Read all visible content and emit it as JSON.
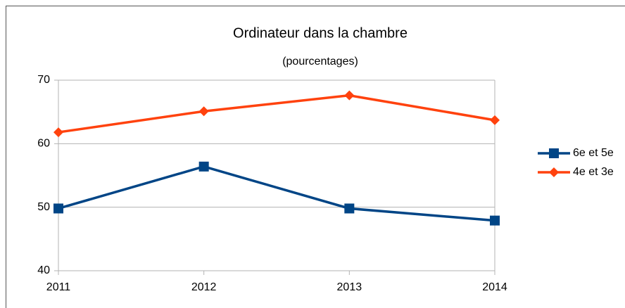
{
  "chart_data": {
    "type": "line",
    "title": "Ordinateur dans la chambre",
    "subtitle": "(pourcentages)",
    "categories": [
      "2011",
      "2012",
      "2013",
      "2014"
    ],
    "series": [
      {
        "name": "6e et 5e",
        "color": "#004586",
        "marker": "square",
        "values": [
          49.8,
          56.4,
          49.8,
          47.9
        ]
      },
      {
        "name": "4e et 3e",
        "color": "#ff420e",
        "marker": "diamond",
        "values": [
          61.8,
          65.1,
          67.6,
          63.7
        ]
      }
    ],
    "ylim": [
      40,
      70
    ],
    "yticks": [
      40,
      50,
      60,
      70
    ],
    "grid": true,
    "legend": "right"
  }
}
